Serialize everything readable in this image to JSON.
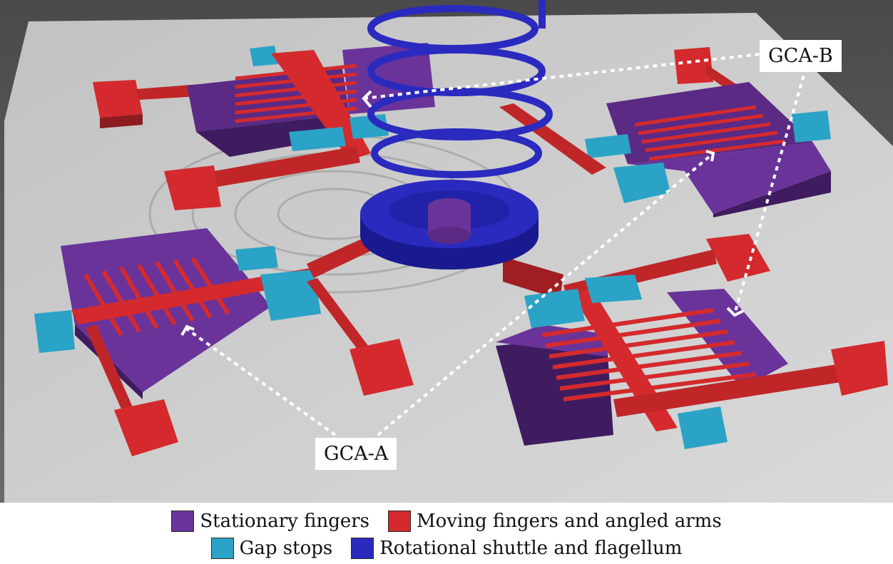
{
  "callouts": {
    "gca_a": "GCA-A",
    "gca_b": "GCA-B"
  },
  "legend": [
    {
      "label": "Stationary fingers",
      "color": "#6a339a"
    },
    {
      "label": "Moving fingers and angled arms",
      "color": "#d42a2d"
    },
    {
      "label": "Gap stops",
      "color": "#2aa3c6"
    },
    {
      "label": "Rotational shuttle and flagellum",
      "color": "#2a2abf"
    }
  ],
  "colors": {
    "stationary": "#6a339a",
    "moving": "#d42a2d",
    "gap_stop": "#2aa3c6",
    "shuttle": "#2a2abf",
    "substrate": "#cfcfcf",
    "background": "#555555"
  }
}
